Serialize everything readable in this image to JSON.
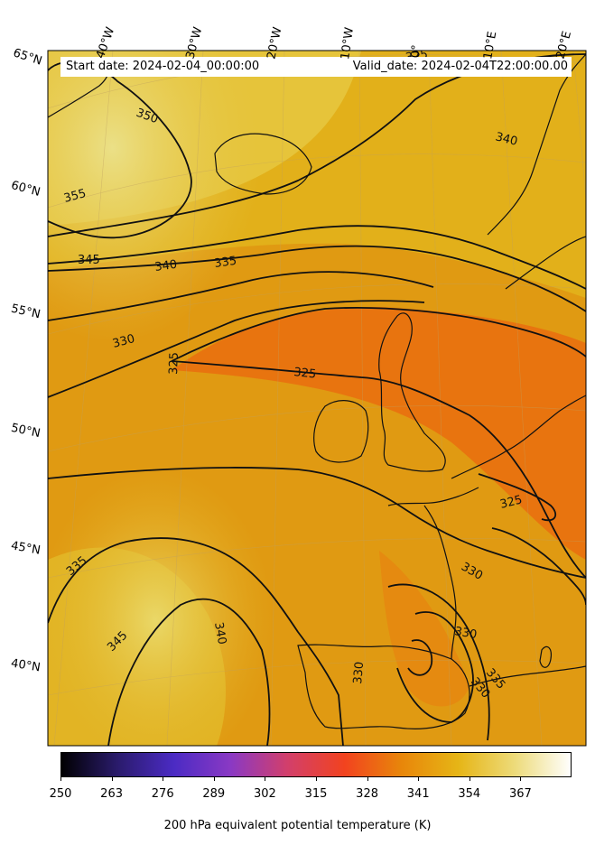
{
  "header": {
    "start_date": "Start date: 2024-02-04_00:00:00",
    "valid_date": "Valid_date: 2024-02-04T22:00:00.00"
  },
  "longitude_labels": [
    "40°W",
    "30°W",
    "20°W",
    "10°W",
    "0°",
    "10°E",
    "20°E"
  ],
  "latitude_labels": [
    "65°N",
    "60°N",
    "55°N",
    "50°N",
    "45°N",
    "40°N"
  ],
  "contour_labels": [
    "350",
    "355",
    "345",
    "340",
    "335",
    "330",
    "325",
    "325",
    "340",
    "325",
    "330",
    "335",
    "340",
    "345",
    "330",
    "330",
    "330",
    "335",
    "325"
  ],
  "colorbar": {
    "ticks": [
      "250",
      "263",
      "276",
      "289",
      "302",
      "315",
      "328",
      "341",
      "354",
      "367"
    ],
    "label": "200 hPa equivalent potential temperature (K)",
    "colors": [
      "#000000",
      "#2a1b6b",
      "#4b2bc4",
      "#8a39c4",
      "#d23f6b",
      "#f2431f",
      "#e8860a",
      "#e6b516",
      "#eddb7a",
      "#ffffff"
    ]
  },
  "map": {
    "field_colors": {
      "cool_yellow": "#ead45a",
      "pale_yellow": "#e8df78",
      "gold": "#e2a614",
      "orange": "#e38a0c",
      "deep_orange": "#e8700f"
    }
  }
}
